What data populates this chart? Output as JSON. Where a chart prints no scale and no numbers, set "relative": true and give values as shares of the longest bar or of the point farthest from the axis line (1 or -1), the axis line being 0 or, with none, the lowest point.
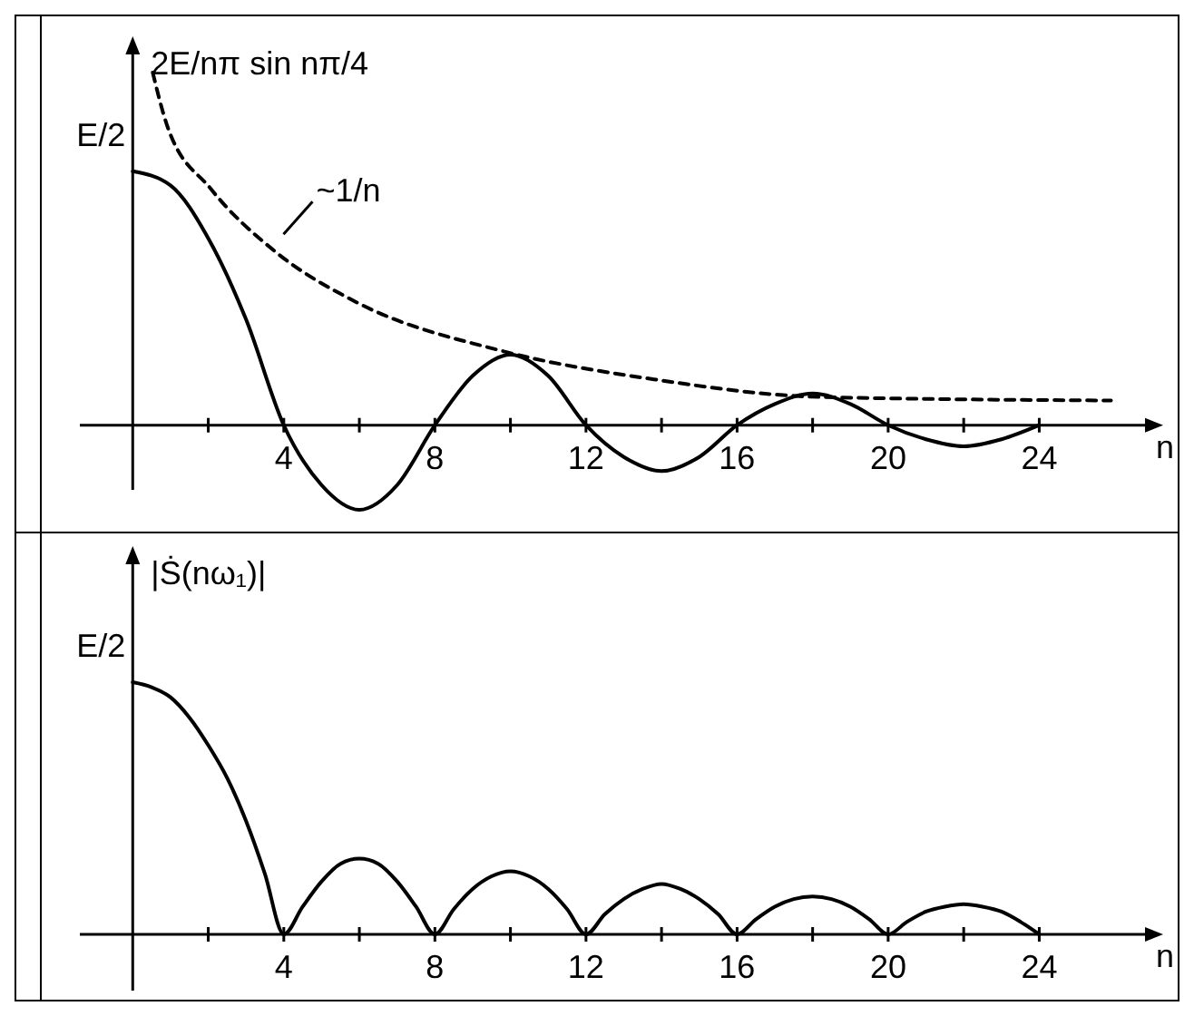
{
  "chart_data": [
    {
      "type": "line",
      "relative": true,
      "ylabel": "2E/nπ sin nπ/4",
      "xlabel": "n",
      "xlim": [
        -1.4,
        26.8
      ],
      "xticks": [
        {
          "value": 2,
          "label": null
        },
        4,
        {
          "value": 6,
          "label": null
        },
        8,
        {
          "value": 10,
          "label": null
        },
        12,
        {
          "value": 14,
          "label": null
        },
        16,
        {
          "value": 18,
          "label": null
        },
        20,
        {
          "value": 22,
          "label": null
        },
        24
      ],
      "series": [
        {
          "color": "#000000",
          "line_style": "solid",
          "x": [
            0,
            1,
            2,
            3,
            4,
            5,
            6,
            7,
            8,
            9,
            10,
            11,
            12,
            13,
            14,
            15,
            16,
            17,
            18,
            19,
            20,
            21,
            22,
            23,
            24
          ],
          "values": [
            0.72,
            0.68,
            0.53,
            0.3,
            0,
            -0.17,
            -0.24,
            -0.17,
            0,
            0.14,
            0.2,
            0.14,
            0,
            -0.09,
            -0.13,
            -0.09,
            0,
            0.06,
            0.09,
            0.06,
            0,
            -0.04,
            -0.06,
            -0.04,
            0
          ]
        },
        {
          "color": "#000000",
          "line_style": "dashed",
          "x": [
            0.53,
            0.91,
            2.07,
            3.8,
            5.9,
            9.8,
            13.8,
            18.2,
            25.9
          ],
          "values": [
            1,
            0.85,
            0.67,
            0.49,
            0.35,
            0.21,
            0.13,
            0.08,
            0.07
          ]
        }
      ],
      "annotations": [
        "E/2",
        {
          "text": "~1/n",
          "x": 3.8,
          "y": 0.49
        }
      ]
    },
    {
      "type": "line",
      "relative": true,
      "ylabel": "|Ṡ(nω₁)|",
      "xlabel": "n",
      "xlim": [
        -1.4,
        26.8
      ],
      "xticks": [
        {
          "value": 2,
          "label": null
        },
        4,
        {
          "value": 6,
          "label": null
        },
        8,
        {
          "value": 10,
          "label": null
        },
        12,
        {
          "value": 14,
          "label": null
        },
        16,
        {
          "value": 18,
          "label": null
        },
        20,
        {
          "value": 22,
          "label": null
        },
        24
      ],
      "series": [
        {
          "color": "#000000",
          "line_style": "solid",
          "x": [
            0,
            0.5,
            1,
            1.5,
            2,
            2.5,
            3,
            3.5,
            4,
            4.5,
            5,
            5.5,
            6,
            6.5,
            7,
            7.5,
            8,
            8.5,
            9,
            9.5,
            10,
            10.5,
            11,
            11.5,
            12,
            12.5,
            13,
            13.5,
            14,
            14.5,
            15,
            15.5,
            16,
            16.5,
            17,
            17.5,
            18,
            18.5,
            19,
            19.5,
            20,
            20.5,
            21,
            21.5,
            22,
            22.5,
            23,
            23.5,
            24
          ],
          "values": [
            1,
            0.98,
            0.94,
            0.86,
            0.75,
            0.62,
            0.45,
            0.24,
            0,
            0.11,
            0.21,
            0.28,
            0.3,
            0.28,
            0.21,
            0.11,
            0,
            0.1,
            0.18,
            0.23,
            0.25,
            0.23,
            0.18,
            0.1,
            0,
            0.08,
            0.14,
            0.18,
            0.2,
            0.18,
            0.14,
            0.08,
            0,
            0.06,
            0.11,
            0.14,
            0.15,
            0.14,
            0.11,
            0.06,
            0,
            0.05,
            0.09,
            0.11,
            0.12,
            0.11,
            0.09,
            0.05,
            0
          ]
        }
      ],
      "annotations": [
        "E/2"
      ]
    }
  ]
}
